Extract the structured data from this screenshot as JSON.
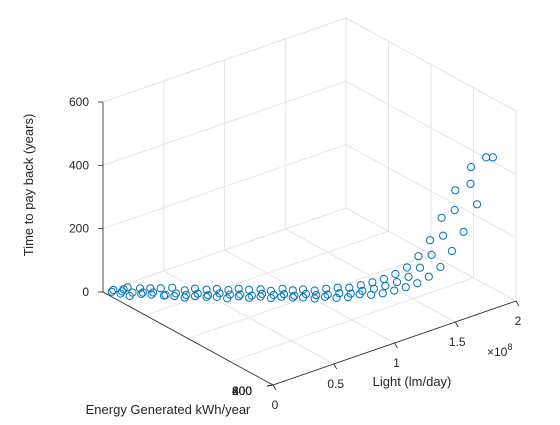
{
  "chart_data": {
    "type": "scatter",
    "projection": "3d",
    "xlabel": "Light (lm/day)",
    "ylabel": "Energy Generated kWh/year",
    "zlabel": "Time to pay back (years)",
    "x_exponent_label": "×10",
    "x_exponent_power": "8",
    "xlim": [
      0,
      200000000
    ],
    "ylim": [
      0,
      800
    ],
    "zlim": [
      0,
      600
    ],
    "x_ticks": [
      {
        "value": 0,
        "label": "0"
      },
      {
        "value": 50000000,
        "label": "0.5"
      },
      {
        "value": 100000000,
        "label": "1"
      },
      {
        "value": 150000000,
        "label": "1.5"
      },
      {
        "value": 200000000,
        "label": "2"
      }
    ],
    "y_ticks": [
      {
        "value": 0,
        "label": "0"
      },
      {
        "value": 200,
        "label": "200"
      },
      {
        "value": 400,
        "label": "400"
      },
      {
        "value": 600,
        "label": "600"
      },
      {
        "value": 800,
        "label": "800"
      }
    ],
    "z_ticks": [
      {
        "value": 0,
        "label": "0"
      },
      {
        "value": 200,
        "label": "200"
      },
      {
        "value": 400,
        "label": "400"
      },
      {
        "value": 600,
        "label": "600"
      }
    ],
    "grid": true,
    "marker": "open-circle",
    "marker_color": "#0072bd",
    "series": [
      {
        "points": [
          [
            2000000,
            770,
            9
          ],
          [
            4000000,
            740,
            12
          ],
          [
            5000000,
            780,
            7
          ],
          [
            7000000,
            750,
            11
          ],
          [
            8000000,
            720,
            6
          ],
          [
            10000000,
            760,
            10
          ],
          [
            12000000,
            730,
            8
          ],
          [
            14000000,
            700,
            12
          ],
          [
            15000000,
            770,
            6
          ],
          [
            17000000,
            710,
            9
          ],
          [
            19000000,
            680,
            11
          ],
          [
            20000000,
            740,
            7
          ],
          [
            22000000,
            690,
            10
          ],
          [
            24000000,
            650,
            12
          ],
          [
            25000000,
            720,
            8
          ],
          [
            27000000,
            660,
            6
          ],
          [
            29000000,
            630,
            11
          ],
          [
            30000000,
            700,
            9
          ],
          [
            32000000,
            640,
            12
          ],
          [
            34000000,
            610,
            7
          ],
          [
            36000000,
            680,
            10
          ],
          [
            37000000,
            620,
            8
          ],
          [
            39000000,
            590,
            12
          ],
          [
            41000000,
            650,
            6
          ],
          [
            43000000,
            600,
            11
          ],
          [
            45000000,
            570,
            9
          ],
          [
            46000000,
            630,
            12
          ],
          [
            48000000,
            580,
            7
          ],
          [
            50000000,
            550,
            10
          ],
          [
            52000000,
            610,
            8
          ],
          [
            54000000,
            560,
            12
          ],
          [
            55000000,
            530,
            6
          ],
          [
            57000000,
            590,
            11
          ],
          [
            59000000,
            540,
            9
          ],
          [
            61000000,
            510,
            12
          ],
          [
            63000000,
            570,
            7
          ],
          [
            64000000,
            520,
            10
          ],
          [
            66000000,
            490,
            8
          ],
          [
            68000000,
            550,
            12
          ],
          [
            70000000,
            500,
            6
          ],
          [
            72000000,
            470,
            11
          ],
          [
            73000000,
            530,
            9
          ],
          [
            75000000,
            480,
            12
          ],
          [
            77000000,
            450,
            7
          ],
          [
            79000000,
            510,
            10
          ],
          [
            81000000,
            460,
            8
          ],
          [
            82000000,
            430,
            12
          ],
          [
            84000000,
            490,
            6
          ],
          [
            86000000,
            440,
            11
          ],
          [
            88000000,
            410,
            9
          ],
          [
            90000000,
            470,
            12
          ],
          [
            91000000,
            420,
            7
          ],
          [
            93000000,
            390,
            10
          ],
          [
            95000000,
            450,
            8
          ],
          [
            97000000,
            400,
            12
          ],
          [
            99000000,
            370,
            6
          ],
          [
            100000000,
            430,
            11
          ],
          [
            102000000,
            380,
            9
          ],
          [
            104000000,
            350,
            12
          ],
          [
            106000000,
            410,
            7
          ],
          [
            108000000,
            360,
            10
          ],
          [
            110000000,
            330,
            8
          ],
          [
            112000000,
            390,
            12
          ],
          [
            114000000,
            340,
            14
          ],
          [
            116000000,
            310,
            10
          ],
          [
            118000000,
            370,
            15
          ],
          [
            120000000,
            320,
            12
          ],
          [
            122000000,
            290,
            18
          ],
          [
            124000000,
            350,
            14
          ],
          [
            126000000,
            300,
            20
          ],
          [
            128000000,
            270,
            16
          ],
          [
            130000000,
            330,
            22
          ],
          [
            132000000,
            280,
            26
          ],
          [
            134000000,
            250,
            20
          ],
          [
            136000000,
            310,
            30
          ],
          [
            138000000,
            260,
            34
          ],
          [
            140000000,
            230,
            28
          ],
          [
            142000000,
            290,
            40
          ],
          [
            144000000,
            240,
            46
          ],
          [
            146000000,
            210,
            38
          ],
          [
            148000000,
            270,
            55
          ],
          [
            150000000,
            220,
            62
          ],
          [
            152000000,
            190,
            50
          ],
          [
            154000000,
            250,
            75
          ],
          [
            156000000,
            200,
            90
          ],
          [
            158000000,
            170,
            70
          ],
          [
            160000000,
            230,
            110
          ],
          [
            162000000,
            180,
            130
          ],
          [
            164000000,
            150,
            100
          ],
          [
            166000000,
            210,
            160
          ],
          [
            168000000,
            160,
            190
          ],
          [
            170000000,
            130,
            150
          ],
          [
            172000000,
            190,
            230
          ],
          [
            174000000,
            140,
            270
          ],
          [
            176000000,
            110,
            210
          ],
          [
            178000000,
            160,
            320
          ],
          [
            180000000,
            100,
            360
          ],
          [
            182000000,
            80,
            300
          ],
          [
            184000000,
            120,
            400
          ],
          [
            186000000,
            60,
            450
          ],
          [
            188000000,
            40,
            455
          ]
        ]
      }
    ]
  }
}
